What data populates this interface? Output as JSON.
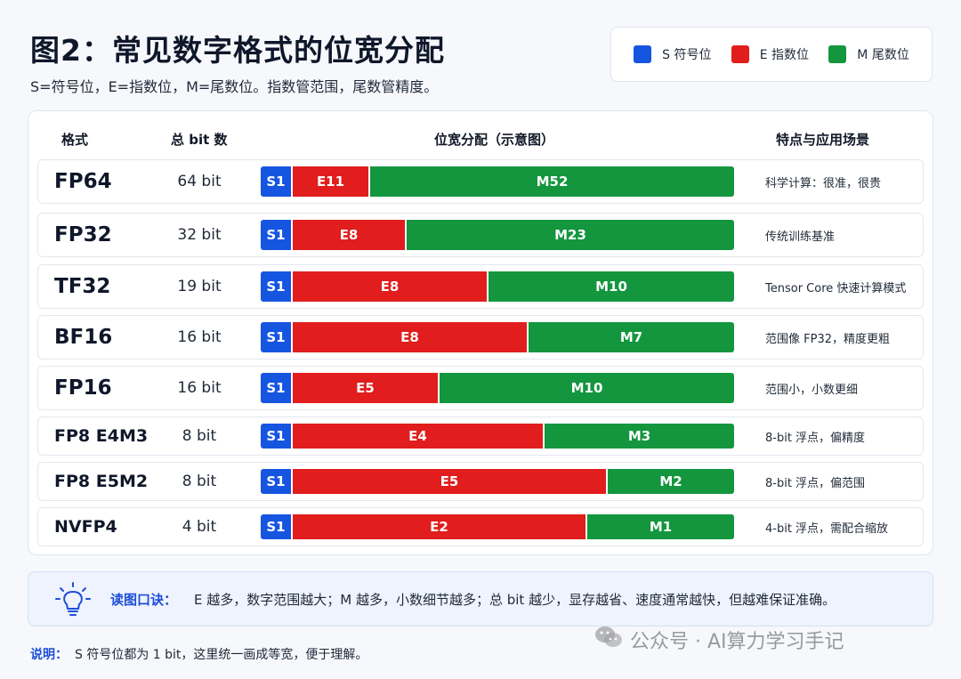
{
  "chart_data": {
    "type": "bar",
    "title": "图2：常见数字格式的位宽分配",
    "subtitle": "S=符号位，E=指数位，M=尾数位。指数管范围，尾数管精度。",
    "stacked": true,
    "orientation": "horizontal",
    "legend": {
      "placement": "top-right",
      "items": [
        {
          "label": "S 符号位",
          "color": "#1655e0"
        },
        {
          "label": "E 指数位",
          "color": "#e11d1d"
        },
        {
          "label": "M 尾数位",
          "color": "#13963e"
        }
      ]
    },
    "columns": [
      "格式",
      "总 bit 数",
      "位宽分配（示意图）",
      "特点与应用场景"
    ],
    "rows": [
      {
        "format": "FP64",
        "total": "64 bit",
        "s": 1,
        "e": 11,
        "m": 52,
        "s_label": "S1",
        "e_label": "E11",
        "m_label": "M52",
        "note": "科学计算：很准，很贵"
      },
      {
        "format": "FP32",
        "total": "32 bit",
        "s": 1,
        "e": 8,
        "m": 23,
        "s_label": "S1",
        "e_label": "E8",
        "m_label": "M23",
        "note": "传统训练基准"
      },
      {
        "format": "TF32",
        "total": "19 bit",
        "s": 1,
        "e": 8,
        "m": 10,
        "s_label": "S1",
        "e_label": "E8",
        "m_label": "M10",
        "note": "Tensor Core 快速计算模式"
      },
      {
        "format": "BF16",
        "total": "16 bit",
        "s": 1,
        "e": 8,
        "m": 7,
        "s_label": "S1",
        "e_label": "E8",
        "m_label": "M7",
        "note": "范围像 FP32，精度更粗"
      },
      {
        "format": "FP16",
        "total": "16 bit",
        "s": 1,
        "e": 5,
        "m": 10,
        "s_label": "S1",
        "e_label": "E5",
        "m_label": "M10",
        "note": "范围小，小数更细"
      },
      {
        "format": "FP8 E4M3",
        "total": "8 bit",
        "s": 1,
        "e": 4,
        "m": 3,
        "s_label": "S1",
        "e_label": "E4",
        "m_label": "M3",
        "note": "8-bit 浮点，偏精度"
      },
      {
        "format": "FP8 E5M2",
        "total": "8 bit",
        "s": 1,
        "e": 5,
        "m": 2,
        "s_label": "S1",
        "e_label": "E5",
        "m_label": "M2",
        "note": "8-bit 浮点，偏范围"
      },
      {
        "format": "NVFP4",
        "total": "4 bit",
        "s": 1,
        "e": 2,
        "m": 1,
        "s_label": "S1",
        "e_label": "E2",
        "m_label": "M1",
        "note": "4-bit 浮点，需配合缩放"
      }
    ],
    "tip_label": "读图口诀：",
    "tip_text": "E 越多，数字范围越大；M 越多，小数细节越多；总 bit 越少，显存越省、速度通常越快，但越难保证准确。",
    "footnote_label": "说明：",
    "footnote_text": "S 符号位都为 1 bit，这里统一画成等宽，便于理解。"
  },
  "watermark": "公众号 · AI算力学习手记",
  "icons": {
    "tip": "lightbulb-icon",
    "watermark": "wechat-icon"
  }
}
